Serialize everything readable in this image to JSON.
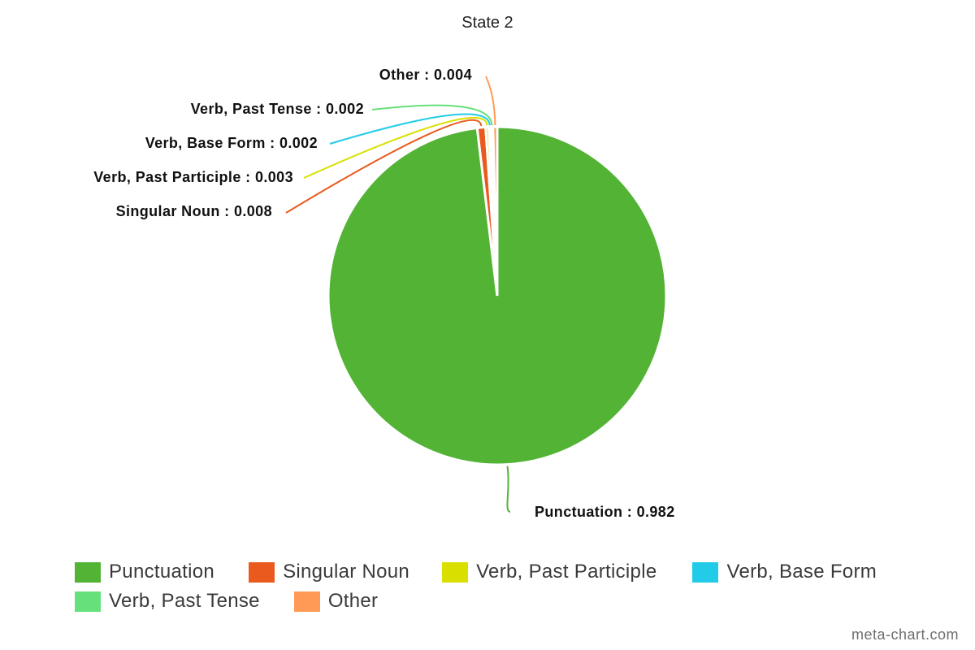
{
  "chart_data": {
    "type": "pie",
    "title": "State 2",
    "slices": [
      {
        "name": "Punctuation",
        "value": 0.982,
        "color": "#52b334"
      },
      {
        "name": "Singular Noun",
        "value": 0.008,
        "color": "#ea5a1e"
      },
      {
        "name": "Verb, Past Participle",
        "value": 0.003,
        "color": "#d9e000"
      },
      {
        "name": "Verb, Base Form",
        "value": 0.002,
        "color": "#22cce8"
      },
      {
        "name": "Verb, Past Tense",
        "value": 0.002,
        "color": "#66e07a"
      },
      {
        "name": "Other",
        "value": 0.004,
        "color": "#ff9a56"
      }
    ],
    "data_labels": [
      "Punctuation : 0.982",
      "Singular Noun : 0.008",
      "Verb, Past Participle : 0.003",
      "Verb, Base Form : 0.002",
      "Verb, Past Tense : 0.002",
      "Other : 0.004"
    ],
    "legend": {
      "placement": "bottom",
      "items": [
        "Punctuation",
        "Singular Noun",
        "Verb, Past Participle",
        "Verb, Base Form",
        "Verb, Past Tense",
        "Other"
      ]
    }
  },
  "credit": "meta-chart.com"
}
